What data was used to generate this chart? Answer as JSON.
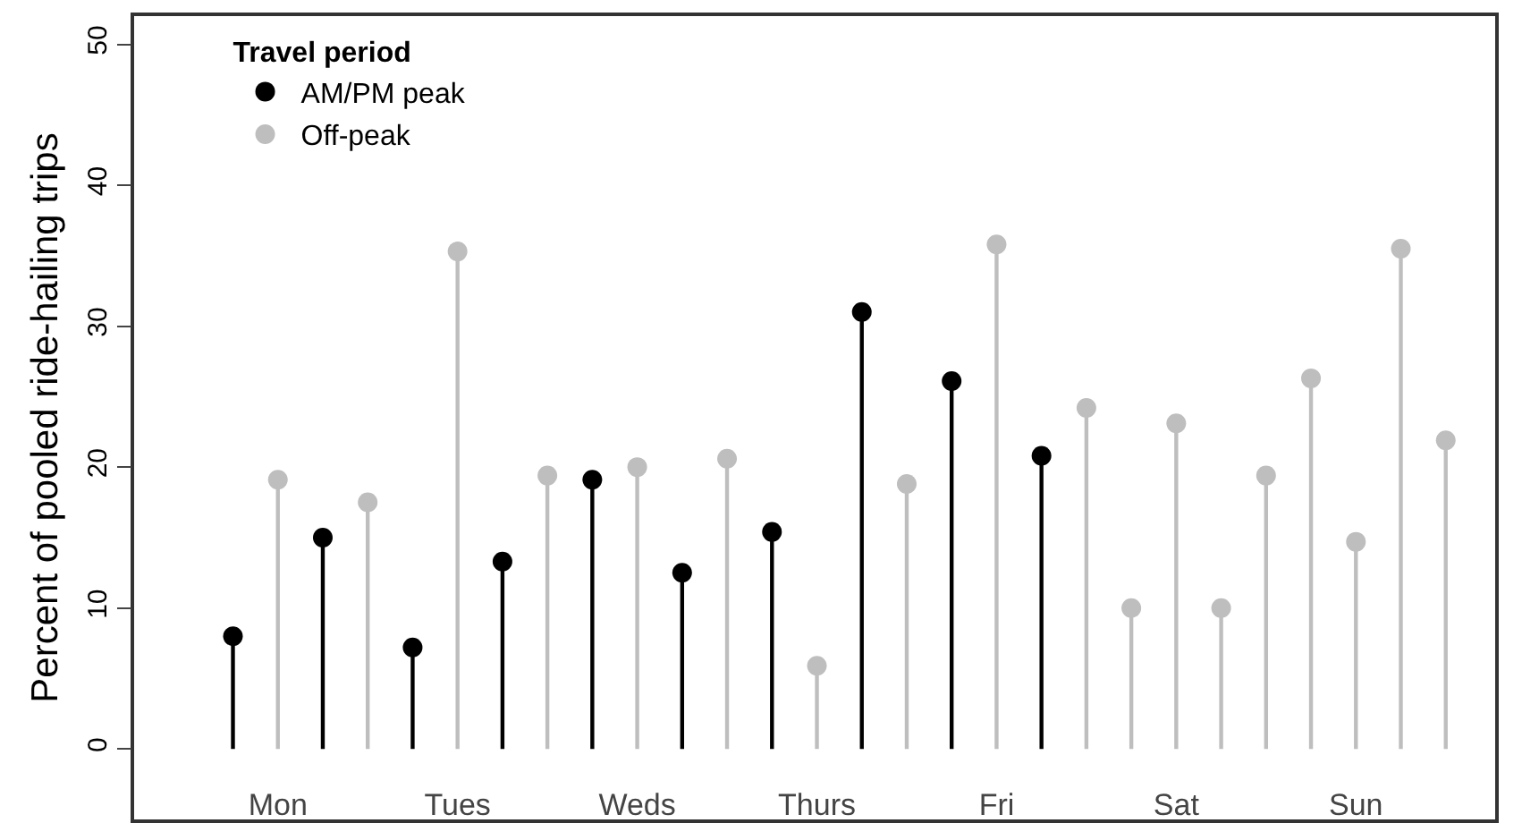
{
  "chart_data": {
    "type": "lollipop",
    "ylabel": "Percent of pooled ride-hailing trips",
    "legend_title": "Travel period",
    "categories": [
      null,
      "Mon",
      null,
      null,
      null,
      "Tues",
      null,
      null,
      null,
      "Weds",
      null,
      null,
      null,
      "Thurs",
      null,
      null,
      null,
      "Fri",
      null,
      null,
      null,
      "Sat",
      null,
      null,
      null,
      "Sun",
      null,
      null
    ],
    "series": [
      {
        "name": "AM/PM peak",
        "color": "#000000",
        "values": [
          8.0,
          null,
          15.0,
          null,
          7.2,
          null,
          13.3,
          null,
          19.1,
          null,
          12.5,
          null,
          15.4,
          null,
          31.0,
          null,
          26.1,
          null,
          20.8,
          null,
          null,
          null,
          null,
          null,
          null,
          null,
          null,
          null
        ]
      },
      {
        "name": "Off-peak",
        "color": "#bebebe",
        "values": [
          null,
          19.1,
          null,
          17.5,
          null,
          35.3,
          null,
          19.4,
          null,
          20.0,
          null,
          20.6,
          null,
          5.9,
          null,
          18.8,
          null,
          35.8,
          null,
          24.2,
          10.0,
          23.1,
          10.0,
          19.4,
          26.3,
          14.7,
          35.5,
          21.9
        ]
      }
    ],
    "ylim": [
      -5,
      52
    ],
    "yticks": [
      0,
      10,
      20,
      30,
      40,
      50
    ],
    "legend": "top left",
    "marker": "circle"
  }
}
